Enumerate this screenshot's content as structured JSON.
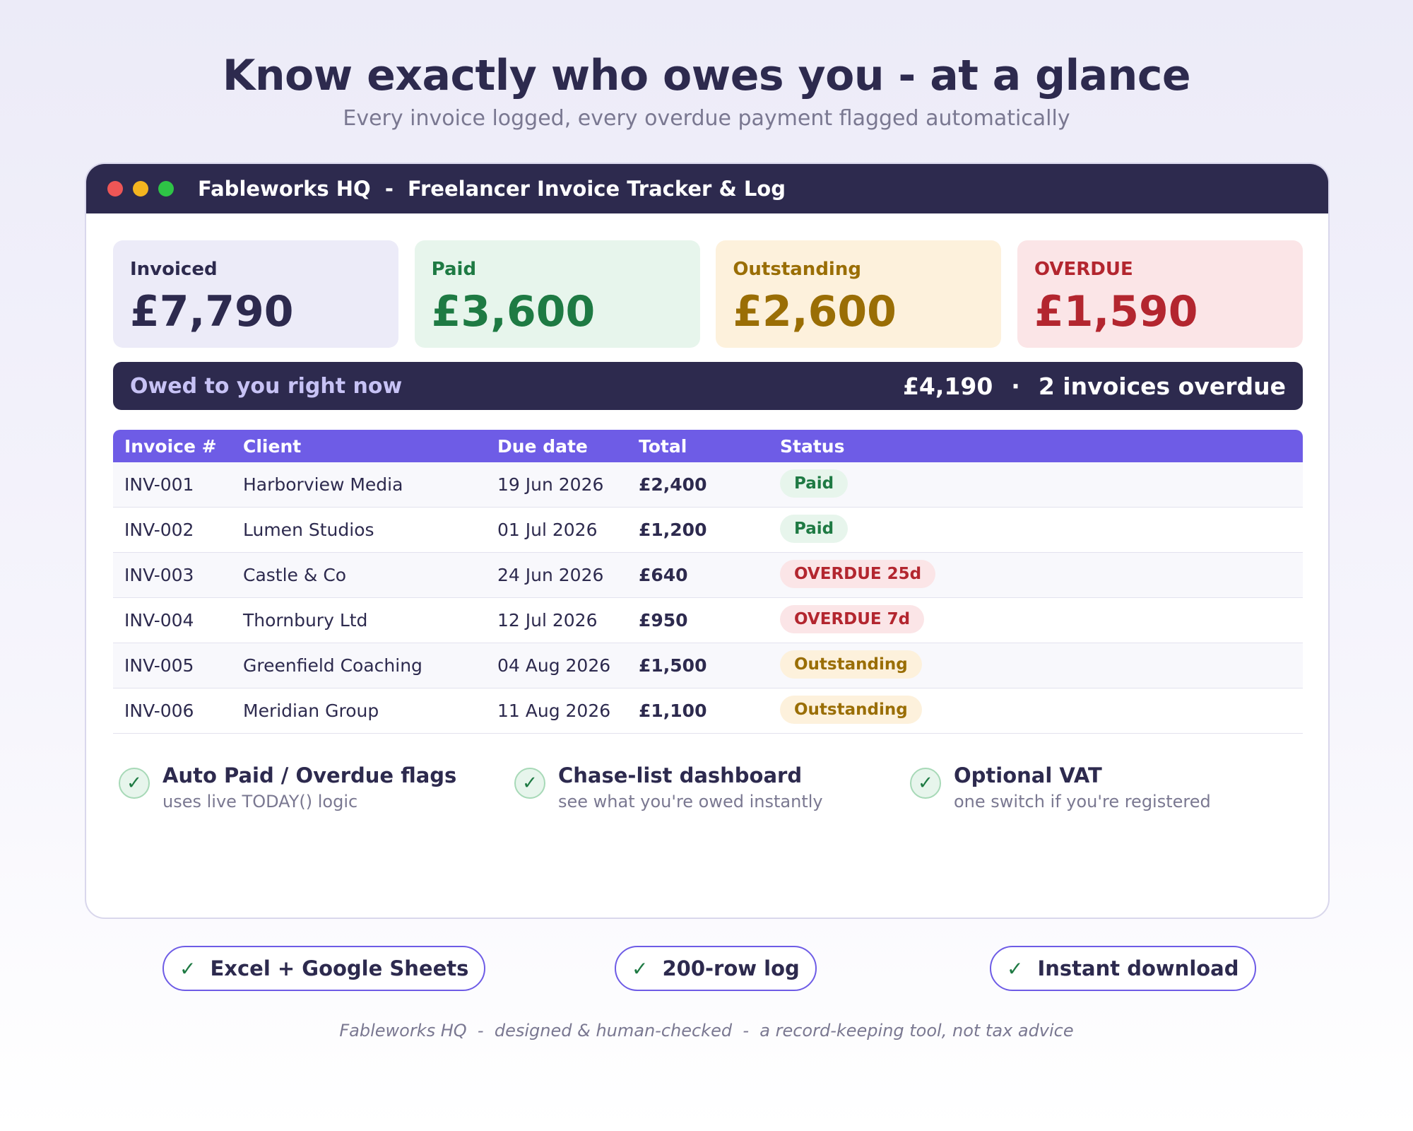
{
  "hero": {
    "title": "Know exactly who owes you - at a glance",
    "subtitle": "Every invoice logged, every overdue payment flagged automatically"
  },
  "window": {
    "title": "Fableworks HQ  -  Freelancer Invoice Tracker & Log"
  },
  "summary_cards": [
    {
      "label": "Invoiced",
      "value": "£7,790"
    },
    {
      "label": "Paid",
      "value": "£3,600"
    },
    {
      "label": "Outstanding",
      "value": "£2,600"
    },
    {
      "label": "OVERDUE",
      "value": "£1,590"
    }
  ],
  "owed_bar": {
    "label": "Owed to you right now",
    "amount": "£4,190",
    "separator": "·",
    "overdue_text": "2 invoices overdue"
  },
  "table": {
    "columns": [
      "Invoice #",
      "Client",
      "Due date",
      "Total",
      "Status"
    ],
    "rows": [
      {
        "invoice": "INV-001",
        "client": "Harborview Media",
        "due": "19 Jun 2026",
        "total": "£2,400",
        "status": "Paid"
      },
      {
        "invoice": "INV-002",
        "client": "Lumen Studios",
        "due": "01 Jul 2026",
        "total": "£1,200",
        "status": "Paid"
      },
      {
        "invoice": "INV-003",
        "client": "Castle & Co",
        "due": "24 Jun 2026",
        "total": "£640",
        "status": "OVERDUE 25d"
      },
      {
        "invoice": "INV-004",
        "client": "Thornbury Ltd",
        "due": "12 Jul 2026",
        "total": "£950",
        "status": "OVERDUE 7d"
      },
      {
        "invoice": "INV-005",
        "client": "Greenfield Coaching",
        "due": "04 Aug 2026",
        "total": "£1,500",
        "status": "Outstanding"
      },
      {
        "invoice": "INV-006",
        "client": "Meridian Group",
        "due": "11 Aug 2026",
        "total": "£1,100",
        "status": "Outstanding"
      }
    ]
  },
  "features": [
    {
      "title": "Auto Paid / Overdue flags",
      "desc": "uses live TODAY() logic"
    },
    {
      "title": "Chase-list dashboard",
      "desc": "see what you're owed instantly"
    },
    {
      "title": "Optional VAT",
      "desc": "one switch if you're registered"
    }
  ],
  "check_glyph": "✓",
  "badges": [
    "Excel + Google Sheets",
    "200-row log",
    "Instant download"
  ],
  "footer": "Fableworks HQ  -  designed & human-checked  -  a record-keeping tool, not tax advice",
  "colors": {
    "navy": "#2d2a4e",
    "accent_purple": "#6e5ce6",
    "paid_green": "#1e7a43",
    "outstanding_amber": "#9a6e05",
    "overdue_red": "#b3262f"
  }
}
